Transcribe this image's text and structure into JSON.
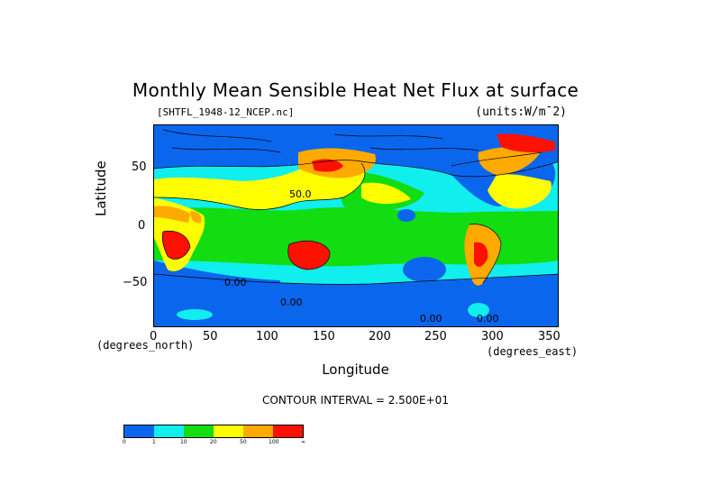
{
  "title": "Monthly Mean Sensible Heat Net Flux at surface",
  "file_label": "[SHTFL_1948-12_NCEP.nc]",
  "units_label": "(units:W/m¯2)",
  "y_axis": {
    "label": "Latitude",
    "unit_note": "(degrees_north)",
    "ticks": [
      "50",
      "0",
      "−50"
    ],
    "range": [
      -90,
      90
    ]
  },
  "x_axis": {
    "label": "Longitude",
    "unit_note": "(degrees_east)",
    "ticks": [
      "0",
      "50",
      "100",
      "150",
      "200",
      "250",
      "300",
      "350"
    ],
    "range": [
      0,
      360
    ]
  },
  "contour_labels": [
    "50.0",
    "0.00",
    "0.00",
    "0.00",
    "0.00"
  ],
  "contour_interval": "CONTOUR INTERVAL = 2.500E+01",
  "colorbar": {
    "colors": [
      "#0b66ee",
      "#11eeee",
      "#11dd11",
      "#ffff00",
      "#ffaa00",
      "#ff1100"
    ],
    "labels": [
      "0",
      "1",
      "10",
      "20",
      "50",
      "100",
      "∞"
    ]
  },
  "map_colors": {
    "ocean_low": "#0b66ee",
    "ocean_mid": "#11eeee",
    "flux_10": "#11dd11",
    "flux_20": "#ffff00",
    "flux_50": "#ffaa00",
    "flux_100": "#ff1100"
  }
}
